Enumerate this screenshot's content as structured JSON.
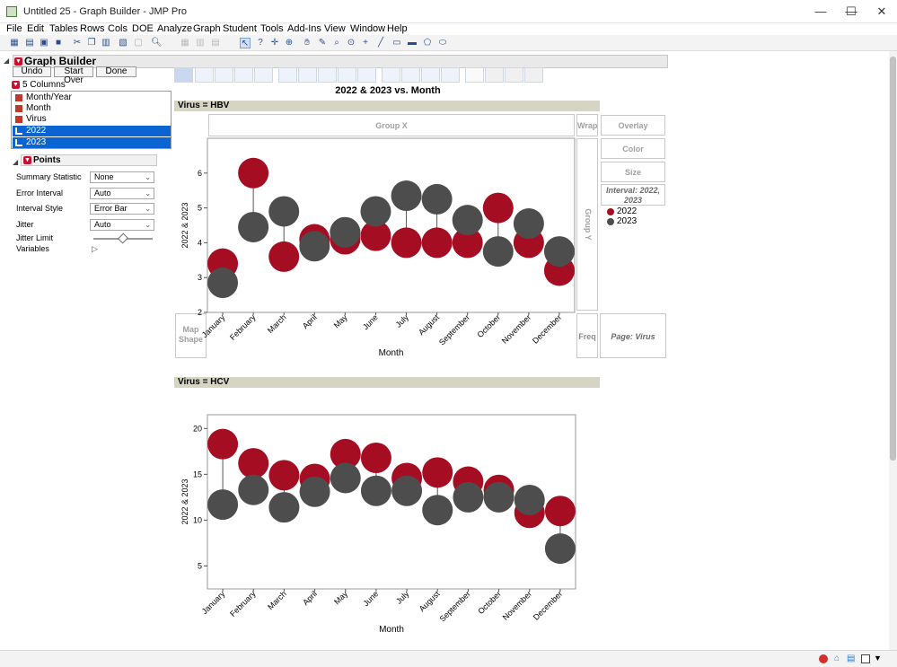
{
  "window": {
    "title": "Untitled 25 - Graph Builder - JMP Pro",
    "minimize": "—",
    "maximize": "☐",
    "close": "✕"
  },
  "menu": [
    "File",
    "Edit",
    "Tables",
    "Rows",
    "Cols",
    "DOE",
    "Analyze",
    "Graph",
    "Student",
    "Tools",
    "Add-Ins",
    "View",
    "Window",
    "Help"
  ],
  "graph_builder": {
    "title": "Graph Builder",
    "buttons": {
      "undo": "Undo",
      "start_over": "Start Over",
      "done": "Done"
    },
    "columns_header": "5 Columns",
    "columns": [
      "Month/Year",
      "Month",
      "Virus",
      "2022",
      "2023"
    ],
    "selected_columns": [
      "2022",
      "2023"
    ],
    "points_header": "Points",
    "controls": {
      "summary_statistic": {
        "label": "Summary Statistic",
        "value": "None"
      },
      "error_interval": {
        "label": "Error Interval",
        "value": "Auto"
      },
      "interval_style": {
        "label": "Interval Style",
        "value": "Error Bar"
      },
      "jitter": {
        "label": "Jitter",
        "value": "Auto"
      },
      "jitter_limit": {
        "label": "Jitter Limit"
      },
      "variables": {
        "label": "Variables"
      }
    }
  },
  "graph": {
    "title": "2022 & 2023 vs. Month",
    "group_x": "Group X",
    "group_y": "Group Y",
    "wrap": "Wrap",
    "overlay": "Overlay",
    "color": "Color",
    "size": "Size",
    "interval_legend": "Interval: 2022, 2023",
    "map_shape": "Map Shape",
    "freq": "Freq",
    "page": "Page: Virus",
    "legend": [
      {
        "name": "2022",
        "color": "#a50d23"
      },
      {
        "name": "2023",
        "color": "#4d4d4d"
      }
    ]
  },
  "chart_data": [
    {
      "type": "scatter",
      "panel": "Virus = HBV",
      "xlabel": "Month",
      "ylabel": "2022 & 2023",
      "ylim": [
        2,
        7
      ],
      "yticks": [
        2,
        3,
        4,
        5,
        6
      ],
      "categories": [
        "January",
        "February",
        "March",
        "April",
        "May",
        "June",
        "July",
        "August",
        "September",
        "October",
        "November",
        "December"
      ],
      "series": [
        {
          "name": "2022",
          "color": "#a50d23",
          "values": [
            3.4,
            6.0,
            3.6,
            4.1,
            4.1,
            4.2,
            4.0,
            4.0,
            4.0,
            5.0,
            4.0,
            3.2
          ]
        },
        {
          "name": "2023",
          "color": "#4d4d4d",
          "values": [
            2.85,
            4.45,
            4.9,
            3.9,
            4.3,
            4.9,
            5.35,
            5.25,
            4.65,
            3.75,
            4.55,
            3.75
          ]
        }
      ]
    },
    {
      "type": "scatter",
      "panel": "Virus = HCV",
      "xlabel": "Month",
      "ylabel": "2022 & 2023",
      "ylim": [
        2.5,
        21.5
      ],
      "yticks": [
        5,
        10,
        15,
        20
      ],
      "categories": [
        "January",
        "February",
        "March",
        "April",
        "May",
        "June",
        "July",
        "August",
        "September",
        "October",
        "November",
        "December"
      ],
      "series": [
        {
          "name": "2022",
          "color": "#a50d23",
          "values": [
            18.3,
            16.2,
            14.9,
            14.5,
            17.2,
            16.8,
            14.6,
            15.2,
            14.2,
            13.3,
            10.8,
            11.0
          ]
        },
        {
          "name": "2023",
          "color": "#4d4d4d",
          "values": [
            11.7,
            13.3,
            11.4,
            13.1,
            14.6,
            13.2,
            13.2,
            11.1,
            12.5,
            12.5,
            12.2,
            6.9
          ]
        }
      ]
    }
  ]
}
